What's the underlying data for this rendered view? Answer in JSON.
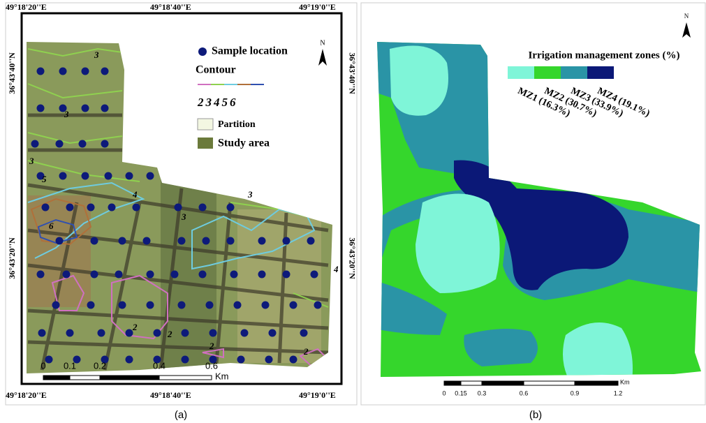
{
  "panel_a": {
    "top_coordinates": [
      "49°18'20''E",
      "49°18'40''E",
      "49°19'0''E"
    ],
    "bottom_coordinates": [
      "49°18'20''E",
      "49°18'40''E",
      "49°19'0''E"
    ],
    "left_coordinates": [
      "36°43'40''N",
      "36°43'20''N"
    ],
    "right_coordinates": [
      "36°43'40''N",
      "36°43'20''N"
    ],
    "legend": {
      "sample_location": "Sample location",
      "contour": "Contour",
      "contour_levels": "23456",
      "partition": "Partition",
      "study_area": "Study area"
    },
    "north": "N",
    "contour_labels": [
      "3",
      "3",
      "3",
      "5",
      "6",
      "4",
      "3",
      "3",
      "2",
      "2",
      "2",
      "2",
      "4"
    ],
    "scale": {
      "ticks": [
        "0",
        "0.1",
        "0.2",
        "0.4",
        "0.6"
      ],
      "unit": "Km"
    },
    "caption": "(a)"
  },
  "panel_b": {
    "legend_title": "Irrigation management zones (%)",
    "zones": [
      "MZ1 (16.3%)",
      "MZ2 (30.7%)",
      "MZ3 (33.9%)",
      "MZ4 (19.1%)"
    ],
    "north": "N",
    "scale": {
      "ticks": [
        "0",
        "0.15",
        "0.3",
        "0.6",
        "0.9",
        "1.2"
      ],
      "unit": "Km"
    },
    "caption": "(b)"
  }
}
